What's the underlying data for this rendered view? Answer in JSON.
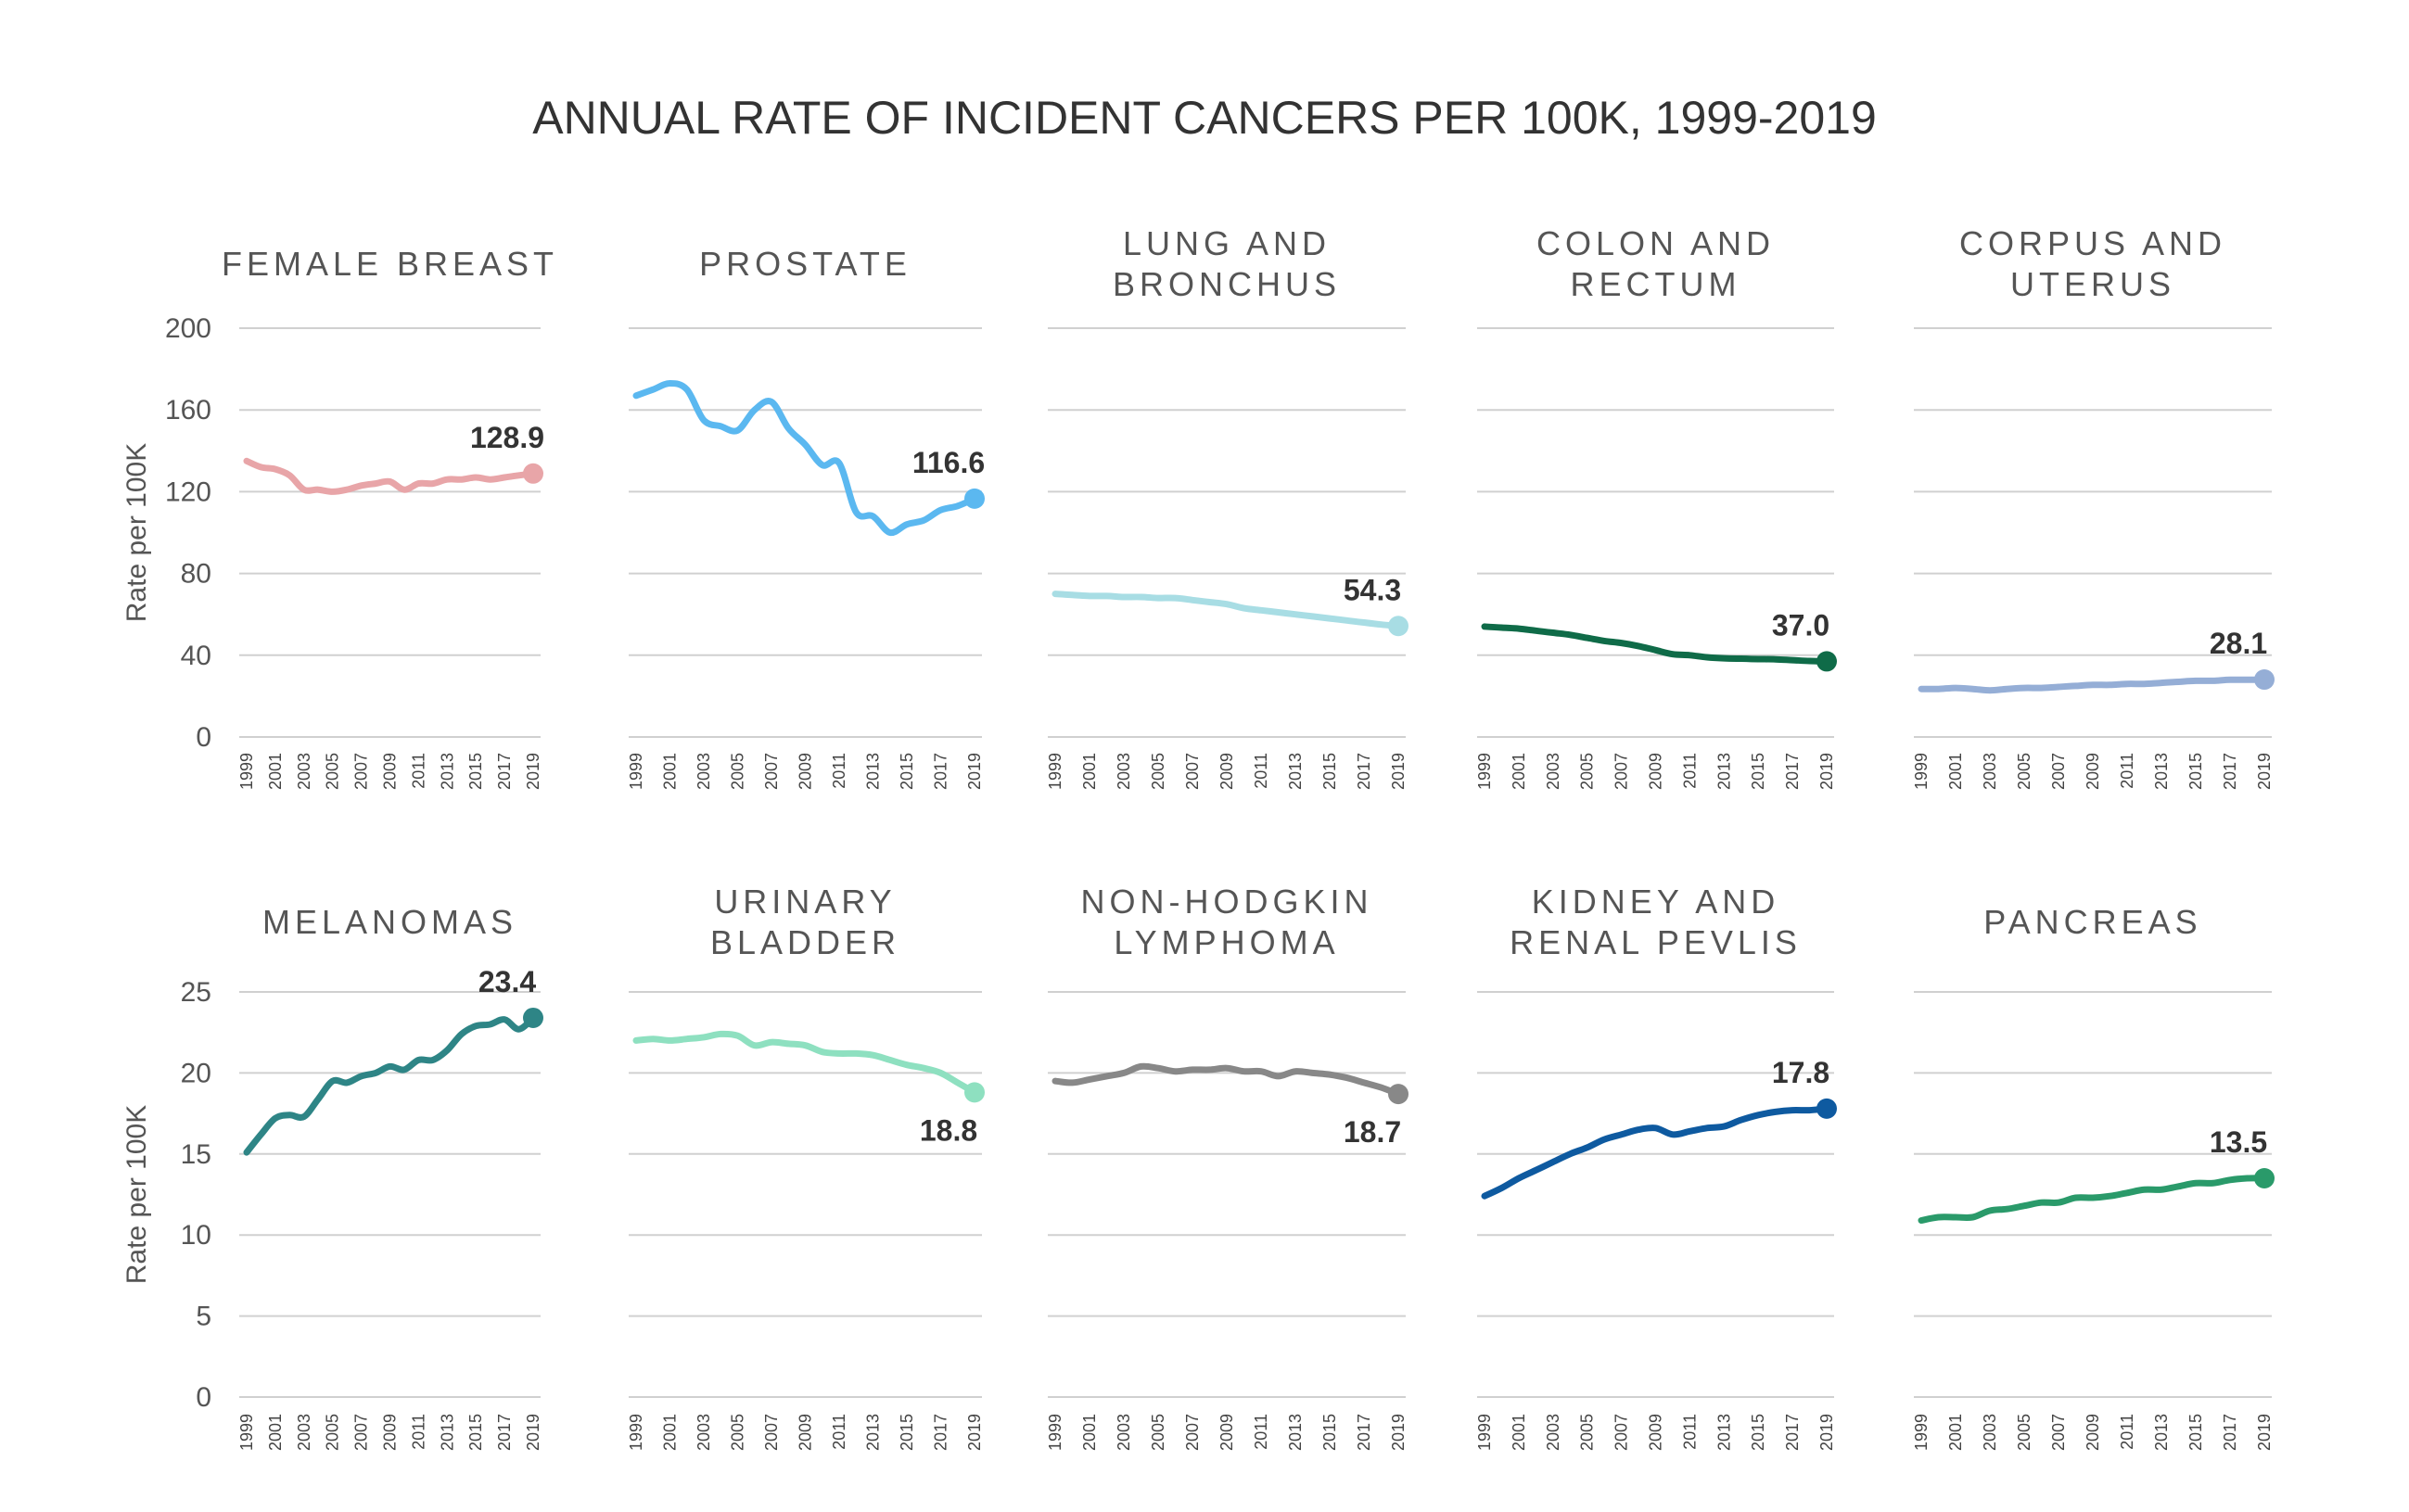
{
  "title": "ANNUAL RATE OF INCIDENT CANCERS PER 100K, 1999-2019",
  "chart_data": [
    {
      "type": "line",
      "title": "FEMALE BREAST",
      "title_lines": [
        "FEMALE BREAST"
      ],
      "ylabel": "Rate per 100K",
      "ylim": [
        0,
        200
      ],
      "yticks": [
        0,
        40,
        80,
        120,
        160,
        200
      ],
      "color": "#e8a5a8",
      "end_label": "128.9",
      "label_pos": "above",
      "x": [
        1999,
        2000,
        2001,
        2002,
        2003,
        2004,
        2005,
        2006,
        2007,
        2008,
        2009,
        2010,
        2011,
        2012,
        2013,
        2014,
        2015,
        2016,
        2017,
        2018,
        2019
      ],
      "values": [
        135,
        132,
        131,
        128,
        121,
        121,
        120,
        121,
        123,
        124,
        125,
        121,
        124,
        124,
        126,
        126,
        127,
        126,
        127,
        128,
        128.9
      ]
    },
    {
      "type": "line",
      "title": "PROSTATE",
      "title_lines": [
        "PROSTATE"
      ],
      "ylabel": "",
      "ylim": [
        0,
        200
      ],
      "yticks": [
        0,
        40,
        80,
        120,
        160,
        200
      ],
      "color": "#5bb8f0",
      "end_label": "116.6",
      "label_pos": "above",
      "x": [
        1999,
        2000,
        2001,
        2002,
        2003,
        2004,
        2005,
        2006,
        2007,
        2008,
        2009,
        2010,
        2011,
        2012,
        2013,
        2014,
        2015,
        2016,
        2017,
        2018,
        2019
      ],
      "values": [
        167,
        170,
        173,
        170,
        155,
        152,
        150,
        160,
        164,
        151,
        143,
        133,
        134,
        110,
        108,
        100,
        104,
        106,
        111,
        113,
        116.6
      ]
    },
    {
      "type": "line",
      "title": "LUNG AND BRONCHUS",
      "title_lines": [
        "LUNG AND",
        "BRONCHUS"
      ],
      "ylabel": "",
      "ylim": [
        0,
        200
      ],
      "yticks": [
        0,
        40,
        80,
        120,
        160,
        200
      ],
      "color": "#a8dde4",
      "end_label": "54.3",
      "label_pos": "above",
      "x": [
        1999,
        2000,
        2001,
        2002,
        2003,
        2004,
        2005,
        2006,
        2007,
        2008,
        2009,
        2010,
        2011,
        2012,
        2013,
        2014,
        2015,
        2016,
        2017,
        2018,
        2019
      ],
      "values": [
        70,
        69.5,
        69,
        69,
        68.5,
        68.5,
        68,
        68,
        67,
        66,
        65,
        63,
        62,
        61,
        60,
        59,
        58,
        57,
        56,
        55,
        54.3
      ]
    },
    {
      "type": "line",
      "title": "COLON AND RECTUM",
      "title_lines": [
        "COLON AND",
        "RECTUM"
      ],
      "ylabel": "",
      "ylim": [
        0,
        200
      ],
      "yticks": [
        0,
        40,
        80,
        120,
        160,
        200
      ],
      "color": "#0f6b48",
      "end_label": "37.0",
      "label_pos": "above",
      "x": [
        1999,
        2000,
        2001,
        2002,
        2003,
        2004,
        2005,
        2006,
        2007,
        2008,
        2009,
        2010,
        2011,
        2012,
        2013,
        2014,
        2015,
        2016,
        2017,
        2018,
        2019
      ],
      "values": [
        54,
        53.5,
        53,
        52,
        51,
        50,
        48.5,
        47,
        46,
        44.5,
        42.5,
        40.5,
        40,
        39,
        38.5,
        38.3,
        38.1,
        38,
        37.6,
        37.2,
        37.0
      ]
    },
    {
      "type": "line",
      "title": "CORPUS AND UTERUS",
      "title_lines": [
        "CORPUS AND",
        "UTERUS"
      ],
      "ylabel": "",
      "ylim": [
        0,
        200
      ],
      "yticks": [
        0,
        40,
        80,
        120,
        160,
        200
      ],
      "color": "#95aed6",
      "end_label": "28.1",
      "label_pos": "above",
      "x": [
        1999,
        2000,
        2001,
        2002,
        2003,
        2004,
        2005,
        2006,
        2007,
        2008,
        2009,
        2010,
        2011,
        2012,
        2013,
        2014,
        2015,
        2016,
        2017,
        2018,
        2019
      ],
      "values": [
        23.5,
        23.5,
        24,
        23.5,
        22.8,
        23.5,
        24,
        24,
        24.5,
        25,
        25.5,
        25.5,
        26,
        26,
        26.5,
        27,
        27.5,
        27.5,
        28,
        28,
        28.1
      ]
    },
    {
      "type": "line",
      "title": "MELANOMAS",
      "title_lines": [
        "MELANOMAS"
      ],
      "ylabel": "Rate per 100K",
      "ylim": [
        0,
        25
      ],
      "yticks": [
        0,
        5,
        10,
        15,
        20,
        25
      ],
      "color": "#2e8586",
      "end_label": "23.4",
      "label_pos": "above",
      "x": [
        1999,
        2000,
        2001,
        2002,
        2003,
        2004,
        2005,
        2006,
        2007,
        2008,
        2009,
        2010,
        2011,
        2012,
        2013,
        2014,
        2015,
        2016,
        2017,
        2018,
        2019
      ],
      "values": [
        15.1,
        16.2,
        17.2,
        17.4,
        17.3,
        18.4,
        19.5,
        19.4,
        19.8,
        20,
        20.4,
        20.2,
        20.8,
        20.8,
        21.4,
        22.4,
        22.9,
        23,
        23.3,
        22.7,
        23.4
      ]
    },
    {
      "type": "line",
      "title": "URINARY BLADDER",
      "title_lines": [
        "URINARY",
        "BLADDER"
      ],
      "ylabel": "",
      "ylim": [
        0,
        25
      ],
      "yticks": [
        0,
        5,
        10,
        15,
        20,
        25
      ],
      "color": "#8ee0c0",
      "end_label": "18.8",
      "label_pos": "below",
      "x": [
        1999,
        2000,
        2001,
        2002,
        2003,
        2004,
        2005,
        2006,
        2007,
        2008,
        2009,
        2010,
        2011,
        2012,
        2013,
        2014,
        2015,
        2016,
        2017,
        2018,
        2019
      ],
      "values": [
        22,
        22.1,
        22,
        22.1,
        22.2,
        22.4,
        22.3,
        21.7,
        21.9,
        21.8,
        21.7,
        21.3,
        21.2,
        21.2,
        21.1,
        20.8,
        20.5,
        20.3,
        20,
        19.4,
        18.8
      ]
    },
    {
      "type": "line",
      "title": "NON-HODGKIN LYMPHOMA",
      "title_lines": [
        "NON-HODGKIN",
        "LYMPHOMA"
      ],
      "ylabel": "",
      "ylim": [
        0,
        25
      ],
      "yticks": [
        0,
        5,
        10,
        15,
        20,
        25
      ],
      "color": "#888888",
      "end_label": "18.7",
      "label_pos": "below",
      "x": [
        1999,
        2000,
        2001,
        2002,
        2003,
        2004,
        2005,
        2006,
        2007,
        2008,
        2009,
        2010,
        2011,
        2012,
        2013,
        2014,
        2015,
        2016,
        2017,
        2018,
        2019
      ],
      "values": [
        19.5,
        19.4,
        19.6,
        19.8,
        20,
        20.4,
        20.3,
        20.1,
        20.2,
        20.2,
        20.3,
        20.1,
        20.1,
        19.8,
        20.1,
        20,
        19.9,
        19.7,
        19.4,
        19.1,
        18.7
      ]
    },
    {
      "type": "line",
      "title": "KIDNEY AND RENAL PEVLIS",
      "title_lines": [
        "KIDNEY AND",
        "RENAL PEVLIS"
      ],
      "ylabel": "",
      "ylim": [
        0,
        25
      ],
      "yticks": [
        0,
        5,
        10,
        15,
        20,
        25
      ],
      "color": "#0e5aa0",
      "end_label": "17.8",
      "label_pos": "above",
      "x": [
        1999,
        2000,
        2001,
        2002,
        2003,
        2004,
        2005,
        2006,
        2007,
        2008,
        2009,
        2010,
        2011,
        2012,
        2013,
        2014,
        2015,
        2016,
        2017,
        2018,
        2019
      ],
      "values": [
        12.4,
        12.9,
        13.5,
        14,
        14.5,
        15,
        15.4,
        15.9,
        16.2,
        16.5,
        16.6,
        16.2,
        16.4,
        16.6,
        16.7,
        17.1,
        17.4,
        17.6,
        17.7,
        17.7,
        17.8
      ]
    },
    {
      "type": "line",
      "title": "PANCREAS",
      "title_lines": [
        "PANCREAS"
      ],
      "ylabel": "",
      "ylim": [
        0,
        25
      ],
      "yticks": [
        0,
        5,
        10,
        15,
        20,
        25
      ],
      "color": "#2a9a6a",
      "end_label": "13.5",
      "label_pos": "above",
      "x": [
        1999,
        2000,
        2001,
        2002,
        2003,
        2004,
        2005,
        2006,
        2007,
        2008,
        2009,
        2010,
        2011,
        2012,
        2013,
        2014,
        2015,
        2016,
        2017,
        2018,
        2019
      ],
      "values": [
        10.9,
        11.1,
        11.1,
        11.1,
        11.5,
        11.6,
        11.8,
        12,
        12,
        12.3,
        12.3,
        12.4,
        12.6,
        12.8,
        12.8,
        13,
        13.2,
        13.2,
        13.4,
        13.5,
        13.5
      ]
    }
  ],
  "x_tick_labels": [
    "1999",
    "2001",
    "2003",
    "2005",
    "2007",
    "2009",
    "2011",
    "2013",
    "2015",
    "2017",
    "2019"
  ]
}
